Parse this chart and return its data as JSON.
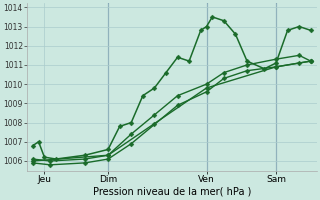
{
  "xlabel": "Pression niveau de la mer( hPa )",
  "bg_color": "#cce8e0",
  "grid_color": "#aacccc",
  "line_color": "#1a6b2a",
  "vline_color": "#557799",
  "ylim": [
    1005.5,
    1014.2
  ],
  "xlim": [
    0.0,
    25.0
  ],
  "yticks": [
    1006,
    1007,
    1008,
    1009,
    1010,
    1011,
    1012,
    1013,
    1014
  ],
  "day_labels": [
    "Jeu",
    "Dim",
    "Ven",
    "Sam"
  ],
  "day_positions": [
    1.5,
    7.0,
    15.5,
    21.5
  ],
  "vline_positions": [
    7.0,
    15.5,
    21.5
  ],
  "series": [
    {
      "x": [
        0.5,
        1.0,
        1.5,
        2.5,
        5.0,
        7.0,
        8.0,
        9.0,
        10.0,
        11.0,
        12.0,
        13.0,
        14.0,
        15.0,
        15.5,
        16.0,
        17.0,
        18.0,
        19.0,
        20.5,
        21.5,
        22.5,
        23.5,
        24.5
      ],
      "y": [
        1006.8,
        1007.0,
        1006.2,
        1006.1,
        1006.3,
        1006.6,
        1007.8,
        1008.0,
        1009.4,
        1009.8,
        1010.6,
        1011.4,
        1011.2,
        1012.8,
        1013.0,
        1013.5,
        1013.3,
        1012.6,
        1011.2,
        1010.8,
        1011.1,
        1012.8,
        1013.0,
        1012.8
      ],
      "lw": 1.1,
      "markersize": 2.5
    },
    {
      "x": [
        0.5,
        2.0,
        5.0,
        7.0,
        9.0,
        11.0,
        13.0,
        15.5,
        17.0,
        19.0,
        21.5,
        23.5,
        24.5
      ],
      "y": [
        1006.1,
        1006.0,
        1006.1,
        1006.3,
        1007.4,
        1008.4,
        1009.4,
        1010.0,
        1010.6,
        1011.0,
        1011.3,
        1011.5,
        1011.2
      ],
      "lw": 1.0,
      "markersize": 2.5
    },
    {
      "x": [
        0.5,
        2.0,
        5.0,
        7.0,
        9.0,
        11.0,
        13.0,
        15.5,
        17.0,
        19.0,
        21.5,
        23.5,
        24.5
      ],
      "y": [
        1005.9,
        1005.8,
        1005.9,
        1006.1,
        1006.9,
        1007.9,
        1008.9,
        1009.6,
        1010.3,
        1010.7,
        1010.9,
        1011.1,
        1011.2
      ],
      "lw": 1.0,
      "markersize": 2.5
    },
    {
      "x": [
        0.5,
        7.0,
        15.5,
        21.5,
        24.5
      ],
      "y": [
        1006.0,
        1006.3,
        1009.8,
        1010.9,
        1011.2
      ],
      "lw": 1.0,
      "markersize": 2.5
    }
  ]
}
